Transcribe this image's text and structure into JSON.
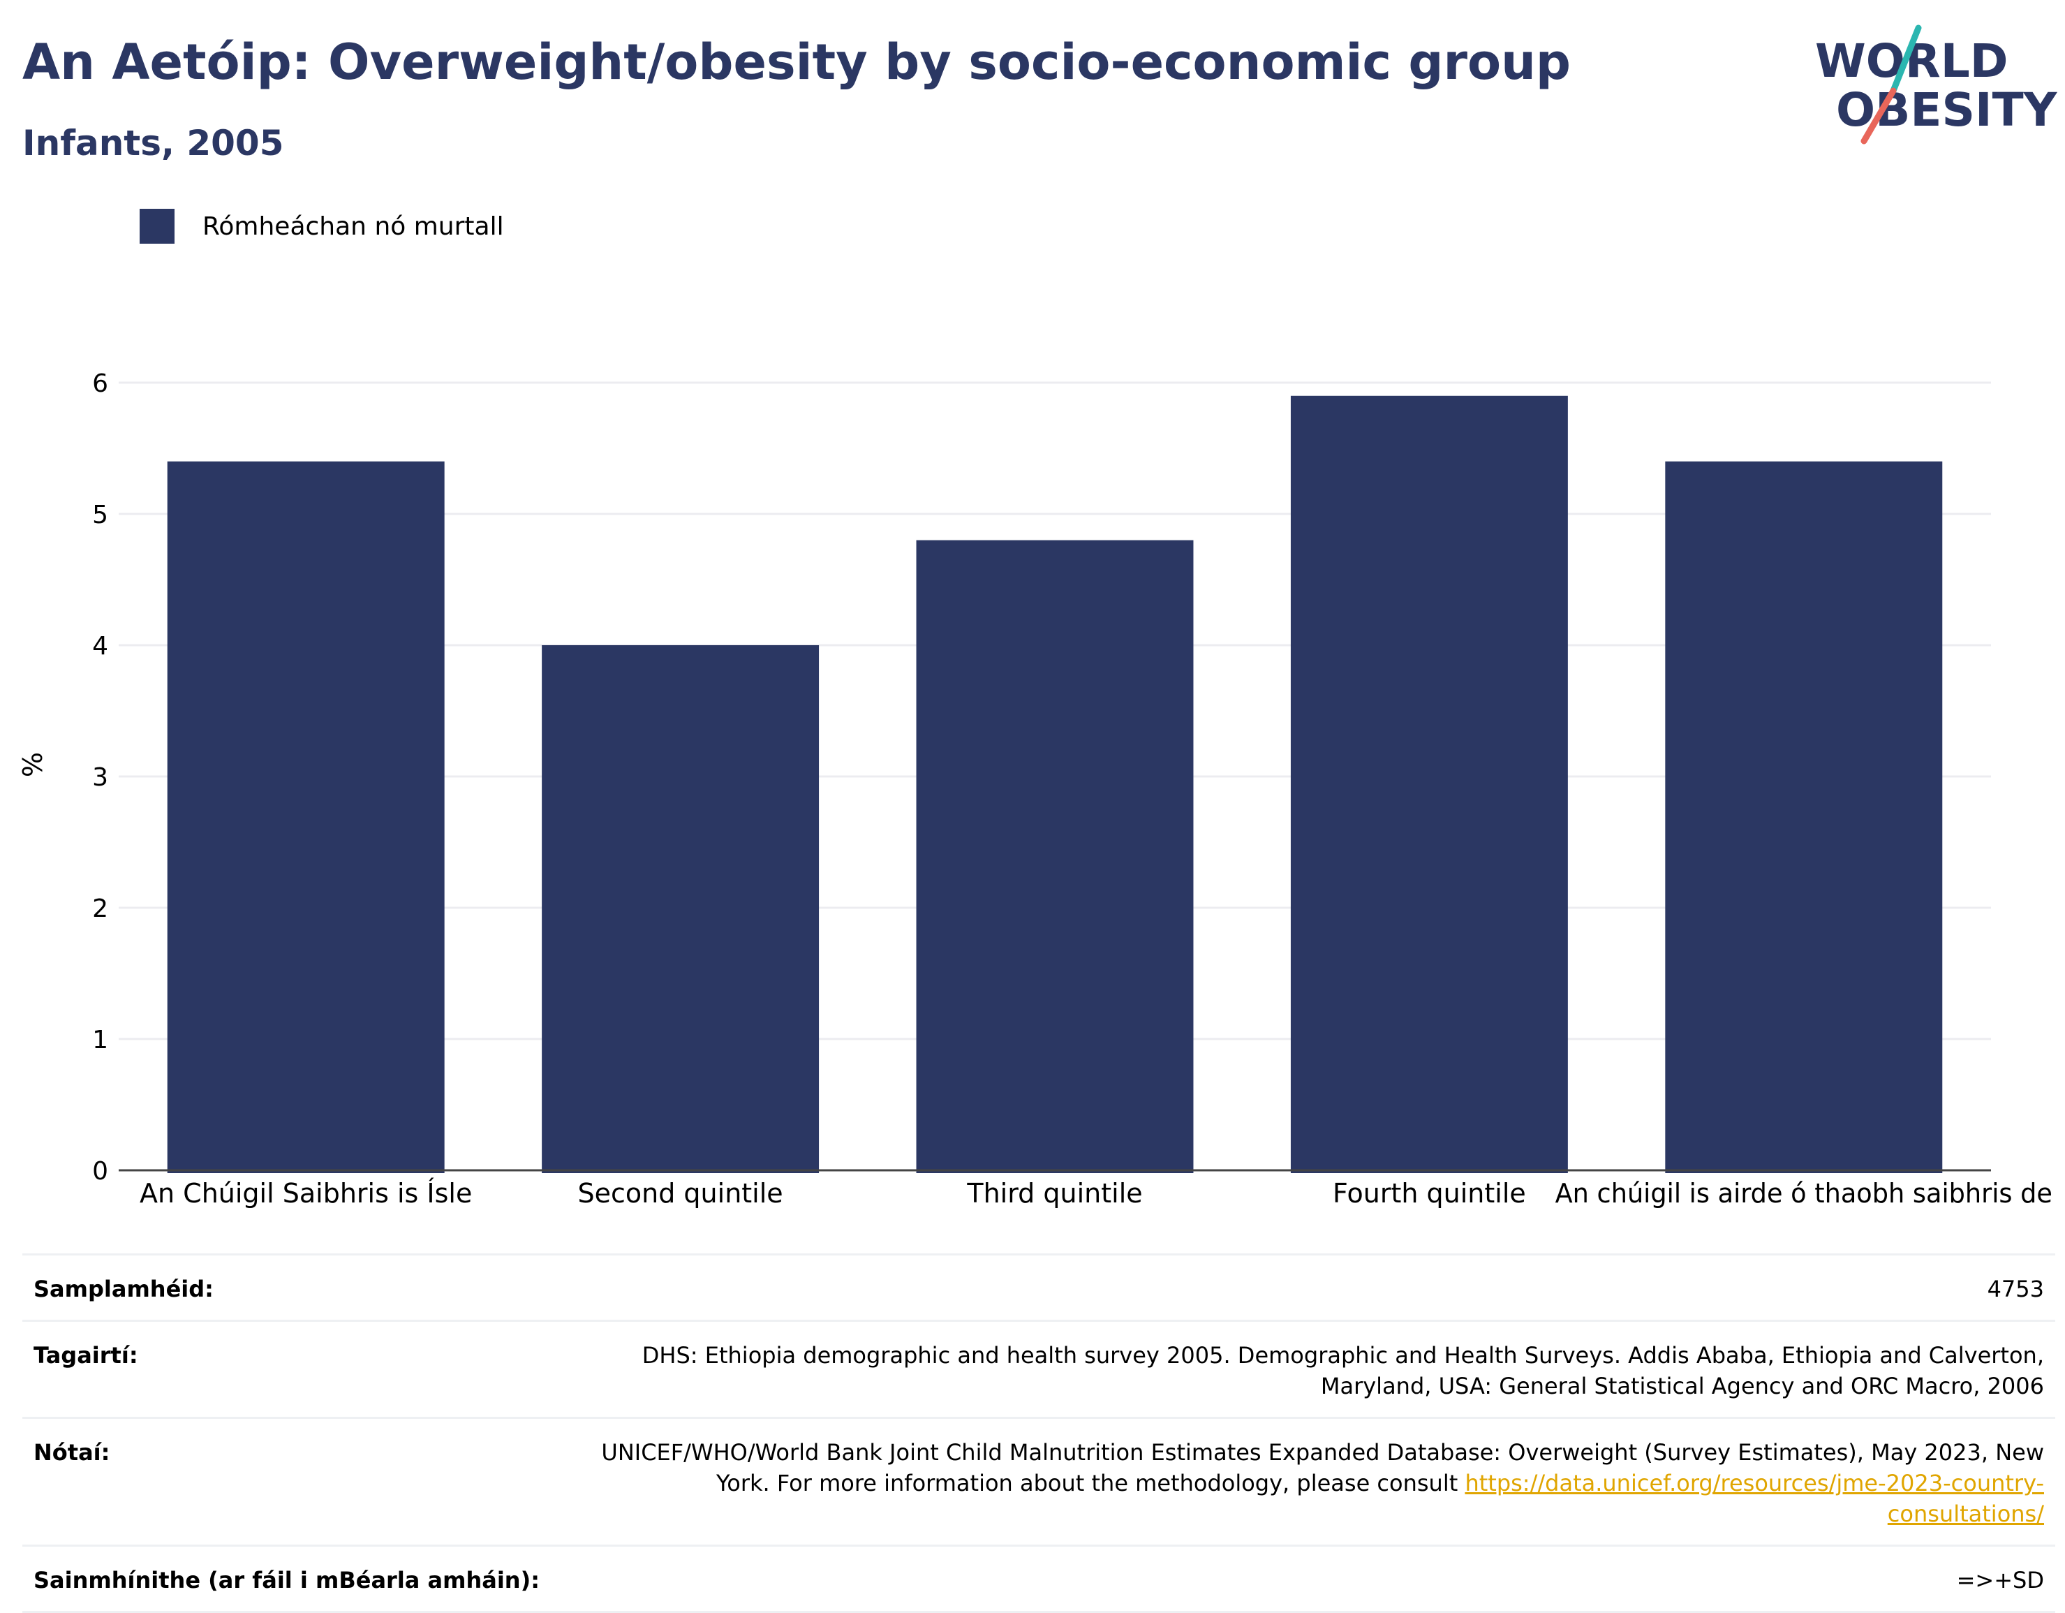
{
  "header": {
    "title": "An Aetóip: Overweight/obesity by socio-economic group",
    "subtitle": "Infants, 2005"
  },
  "logo": {
    "line1": "WORLD",
    "line2": "OBESITY",
    "colors": {
      "text": "#2b3763",
      "slash_top": "#2bb6b0",
      "slash_bottom": "#e8665a"
    }
  },
  "chart_data": {
    "type": "bar",
    "categories": [
      "An Chúigil Saibhris is Ísle",
      "Second quintile",
      "Third quintile",
      "Fourth quintile",
      "An chúigil is airde ó thaobh saibhris de"
    ],
    "series": [
      {
        "name": "Rómheáchan nó murtall",
        "values": [
          5.4,
          4.0,
          4.8,
          5.9,
          5.4
        ],
        "color": "#2b3763"
      }
    ],
    "ylabel": "%",
    "ylim": [
      0,
      6
    ],
    "yticks": [
      0,
      1,
      2,
      3,
      4,
      5,
      6
    ],
    "grid": true,
    "legend_position": "top-left"
  },
  "footer": {
    "rows": [
      {
        "label": "Samplamhéid:",
        "value": "4753"
      },
      {
        "label": "Tagairtí:",
        "value": "DHS: Ethiopia demographic and health survey 2005. Demographic and Health Surveys. Addis Ababa, Ethiopia and Calverton, Maryland, USA: General Statistical Agency and ORC Macro, 2006"
      },
      {
        "label": "Nótaí:",
        "value": "UNICEF/WHO/World Bank Joint Child Malnutrition Estimates Expanded Database: Overweight (Survey Estimates), May 2023, New York. For more information about the methodology, please consult ",
        "link": "https://data.unicef.org/resources/jme-2023-country-consultations/"
      },
      {
        "label": "Sainmhínithe (ar fáil i mBéarla amháin):",
        "value": "=>+SD"
      }
    ]
  }
}
